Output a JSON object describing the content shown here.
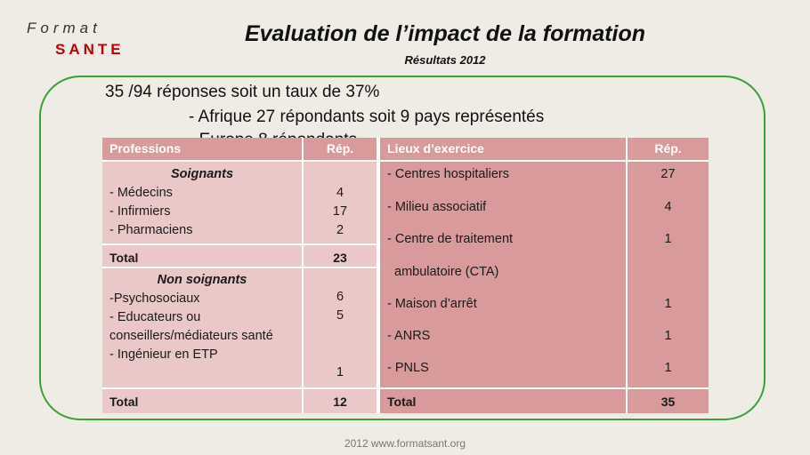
{
  "brand": {
    "line1": "Format",
    "line2": "SANTE"
  },
  "title": "Evaluation  de l’impact de la formation",
  "subtitle": "Résultats 2012",
  "summary": {
    "line1": "35 /94 réponses soit un taux de 37%",
    "line2": "- Afrique 27 répondants soit 9 pays représentés",
    "line3": "- Europe 8 répondants"
  },
  "table_left": {
    "headers": {
      "col1": "Professions",
      "col2": "Rép."
    },
    "group1": {
      "title": "Soignants",
      "rows": [
        {
          "label": "- Médecins",
          "value": "4"
        },
        {
          "label": "- Infirmiers",
          "value": "17"
        },
        {
          "label": "- Pharmaciens",
          "value": "2"
        }
      ],
      "total_label": "Total",
      "total_value": "23"
    },
    "group2": {
      "title": "Non soignants",
      "lines": [
        "-Psychosociaux",
        "- Educateurs ou",
        "conseillers/médiateurs santé",
        "- Ingénieur en ETP"
      ],
      "values": [
        "6",
        "5",
        "1"
      ],
      "total_label": "Total",
      "total_value": "12"
    }
  },
  "table_right": {
    "headers": {
      "col1": "Lieux d’exercice",
      "col2": "Rép."
    },
    "rows": [
      {
        "label": "- Centres hospitaliers",
        "value": "27"
      },
      {
        "label": "- Milieu associatif",
        "value": "4"
      },
      {
        "label": "- Centre de traitement",
        "value": "1"
      },
      {
        "label": "ambulatoire (CTA)",
        "value": ""
      },
      {
        "label": "- Maison d’arrêt",
        "value": "1"
      },
      {
        "label": "- ANRS",
        "value": "1"
      },
      {
        "label": "- PNLS",
        "value": "1"
      }
    ],
    "total_label": "Total",
    "total_value": "35"
  },
  "footer": "2012 www.formatsant.org"
}
